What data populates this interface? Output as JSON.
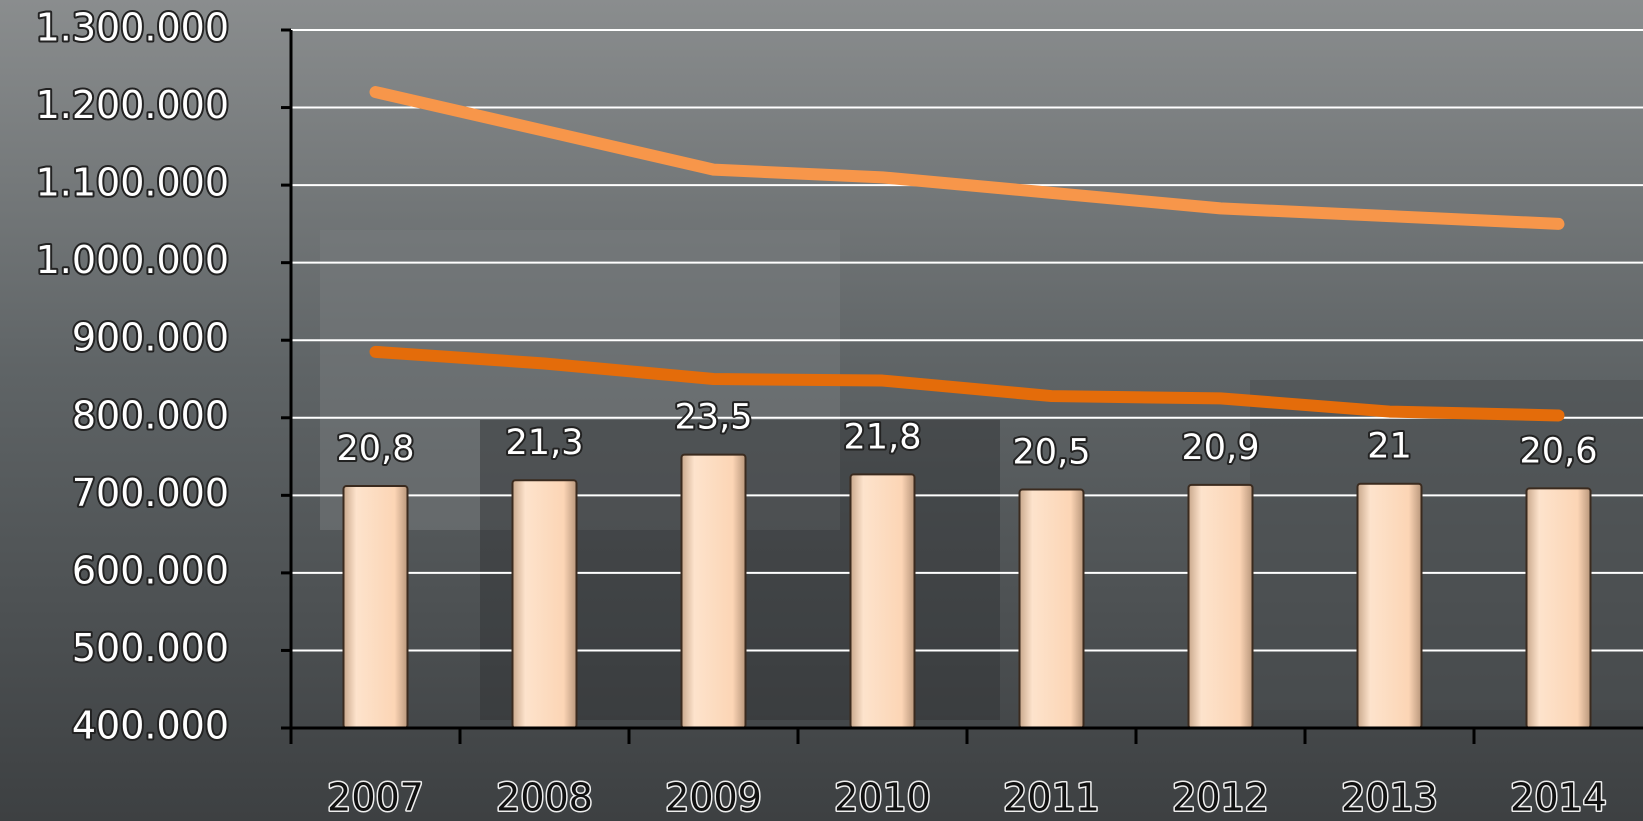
{
  "chart_data": {
    "type": "bar",
    "categories": [
      "2007",
      "2008",
      "2009",
      "2010",
      "2011",
      "2012",
      "2013",
      "2014"
    ],
    "series": [
      {
        "type": "bar",
        "axis": "y2",
        "color": "#fcd5b5",
        "values": [
          20.8,
          21.3,
          23.5,
          21.8,
          20.5,
          20.9,
          21,
          20.6
        ],
        "value_labels": [
          "20,8",
          "21,3",
          "23,5",
          "21,8",
          "20,5",
          "20,9",
          "21",
          "20,6"
        ]
      },
      {
        "type": "line",
        "color": "#f7964a",
        "values": [
          1220000,
          1170000,
          1120000,
          1110000,
          1090000,
          1070000,
          1060000,
          1050000
        ]
      },
      {
        "type": "line",
        "color": "#e46c0a",
        "values": [
          885000,
          870000,
          850000,
          848000,
          828000,
          825000,
          808000,
          803000
        ]
      }
    ],
    "ylim": [
      400000,
      1300000
    ],
    "yticks": [
      {
        "value": 400000,
        "label": "400.000"
      },
      {
        "value": 500000,
        "label": "500.000"
      },
      {
        "value": 600000,
        "label": "600.000"
      },
      {
        "value": 700000,
        "label": "700.000"
      },
      {
        "value": 800000,
        "label": "800.000"
      },
      {
        "value": 900000,
        "label": "900.000"
      },
      {
        "value": 1000000,
        "label": "1.000.000"
      },
      {
        "value": 1100000,
        "label": "1.100.000"
      },
      {
        "value": 1200000,
        "label": "1.200.000"
      },
      {
        "value": 1300000,
        "label": "1.300.000"
      }
    ],
    "y2lim": [
      0,
      60
    ],
    "grid": true
  }
}
